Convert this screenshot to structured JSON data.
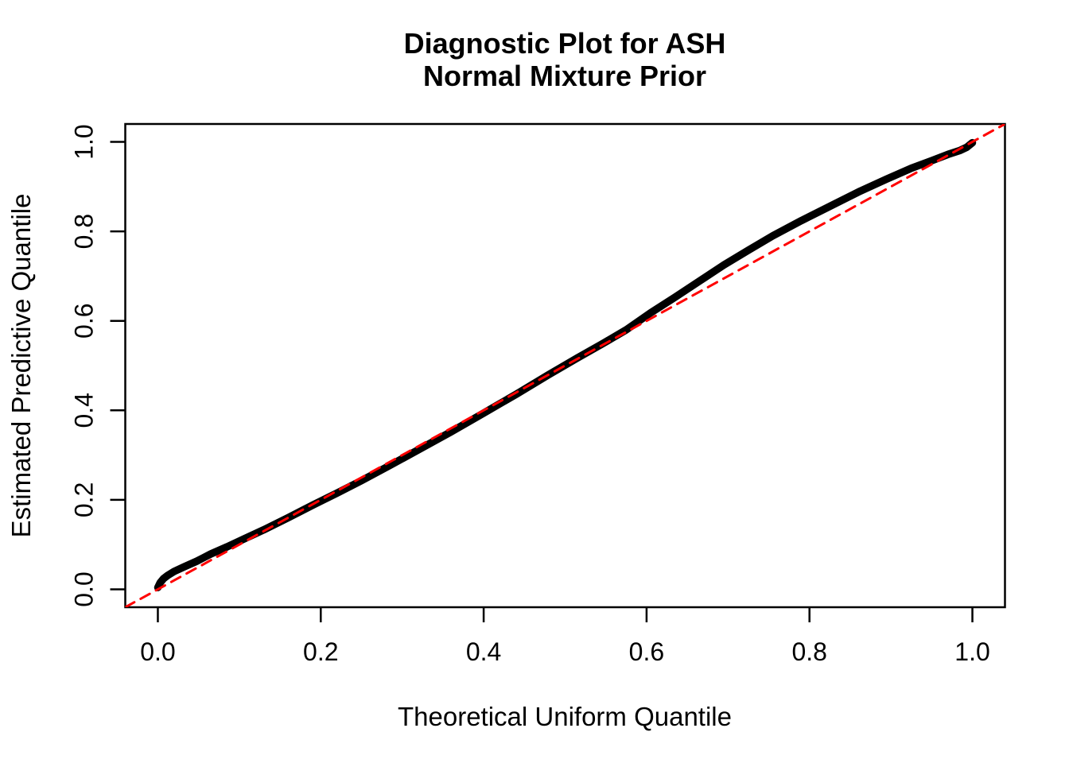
{
  "figure": {
    "background_color": "#ffffff",
    "foreground_color": "#000000"
  },
  "chart_data": {
    "type": "line",
    "title_lines": [
      "Diagnostic Plot for ASH",
      "Normal Mixture Prior"
    ],
    "xlabel": "Theoretical Uniform Quantile",
    "ylabel": "Estimated Predictive Quantile",
    "x_tick_labels": [
      "0.0",
      "0.2",
      "0.4",
      "0.6",
      "0.8",
      "1.0"
    ],
    "y_tick_labels": [
      "0.0",
      "0.2",
      "0.4",
      "0.6",
      "0.8",
      "1.0"
    ],
    "x_tick_values": [
      0.0,
      0.2,
      0.4,
      0.6,
      0.8,
      1.0
    ],
    "y_tick_values": [
      0.0,
      0.2,
      0.4,
      0.6,
      0.8,
      1.0
    ],
    "xlim": [
      -0.04,
      1.04
    ],
    "ylim": [
      -0.04,
      1.04
    ],
    "grid": false,
    "legend": null,
    "series": [
      {
        "name": "estimated-predictive-quantile-curve",
        "style": "solid",
        "color": "#000000",
        "stroke_width": 9.5,
        "points": [
          [
            0.0,
            0.004
          ],
          [
            0.003,
            0.015
          ],
          [
            0.007,
            0.024
          ],
          [
            0.012,
            0.031
          ],
          [
            0.02,
            0.04
          ],
          [
            0.032,
            0.05
          ],
          [
            0.048,
            0.063
          ],
          [
            0.065,
            0.079
          ],
          [
            0.085,
            0.095
          ],
          [
            0.105,
            0.112
          ],
          [
            0.13,
            0.133
          ],
          [
            0.16,
            0.16
          ],
          [
            0.19,
            0.188
          ],
          [
            0.22,
            0.215
          ],
          [
            0.25,
            0.243
          ],
          [
            0.285,
            0.277
          ],
          [
            0.32,
            0.312
          ],
          [
            0.36,
            0.352
          ],
          [
            0.4,
            0.394
          ],
          [
            0.44,
            0.436
          ],
          [
            0.48,
            0.48
          ],
          [
            0.515,
            0.517
          ],
          [
            0.545,
            0.548
          ],
          [
            0.575,
            0.58
          ],
          [
            0.605,
            0.618
          ],
          [
            0.635,
            0.653
          ],
          [
            0.665,
            0.689
          ],
          [
            0.695,
            0.725
          ],
          [
            0.725,
            0.758
          ],
          [
            0.755,
            0.79
          ],
          [
            0.79,
            0.824
          ],
          [
            0.825,
            0.856
          ],
          [
            0.86,
            0.888
          ],
          [
            0.895,
            0.917
          ],
          [
            0.925,
            0.941
          ],
          [
            0.95,
            0.958
          ],
          [
            0.97,
            0.972
          ],
          [
            0.985,
            0.981
          ],
          [
            0.993,
            0.988
          ],
          [
            1.0,
            0.998
          ]
        ]
      },
      {
        "name": "identity-reference-line",
        "style": "dashed",
        "color": "#FF0000",
        "stroke_width": 3,
        "dash": [
          13,
          9
        ],
        "points": [
          [
            -0.04,
            -0.04
          ],
          [
            1.04,
            1.04
          ]
        ]
      }
    ]
  }
}
